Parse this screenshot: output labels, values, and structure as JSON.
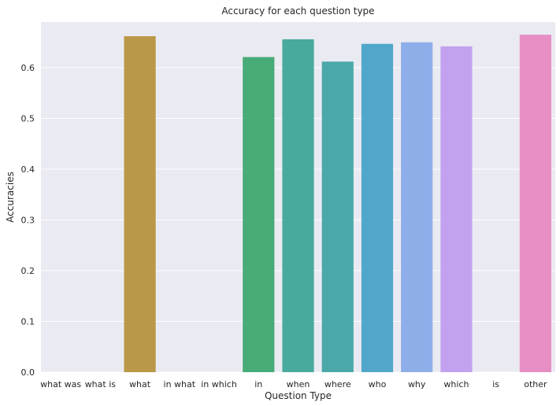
{
  "chart_data": {
    "type": "bar",
    "title": "Accuracy for each question type",
    "xlabel": "Question Type",
    "ylabel": "Accuracies",
    "categories": [
      "what was",
      "what is",
      "what",
      "in what",
      "in which",
      "in",
      "when",
      "where",
      "who",
      "why",
      "which",
      "is",
      "other"
    ],
    "values": [
      0.0,
      0.0,
      0.662,
      0.0,
      0.0,
      0.621,
      0.656,
      0.612,
      0.647,
      0.65,
      0.642,
      0.0,
      0.665
    ],
    "colors": [
      "#f77189",
      "#e98f31",
      "#bb9847",
      "#9fa540",
      "#74ae3f",
      "#47ac77",
      "#48aa9d",
      "#4aa8a9",
      "#51a7c9",
      "#8eaee9",
      "#c2a2ee",
      "#ee8fd0",
      "#e78fc5"
    ],
    "ylim": [
      0,
      0.69
    ],
    "yticks": [
      "0.0",
      "0.1",
      "0.2",
      "0.3",
      "0.4",
      "0.5",
      "0.6"
    ],
    "grid": true,
    "background": "#eaeaf2"
  }
}
